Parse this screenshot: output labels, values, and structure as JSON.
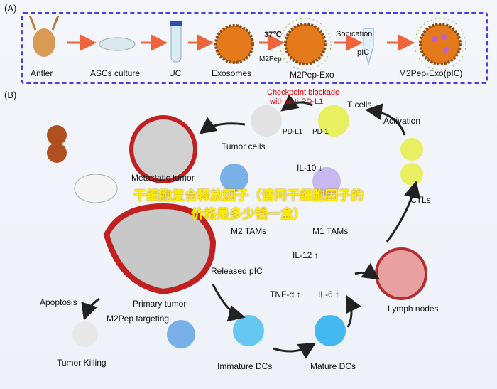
{
  "panel_a": {
    "label": "(A)",
    "steps": [
      "Antler",
      "ASCs culture",
      "UC",
      "Exosomes",
      "M2Pep-Exo",
      "M2Pep-Exo(pIC)"
    ],
    "temp": "37℃",
    "m2pep": "M2Pep",
    "sonication": "Sonication",
    "pic": "pIC"
  },
  "panel_b": {
    "label": "(B)",
    "checkpoint": "Checkpoint blockade",
    "checkpoint2": "with anti-PD-L1",
    "t_cells": "T cells",
    "pd_l1": "PD-L1",
    "pd_1": "PD-1",
    "tumor_cells": "Tumor cells",
    "metastatic": "Metastatic tumor",
    "activation": "Activation",
    "il10": "IL-10 ↓",
    "m2tams": "M2 TAMs",
    "m1tams": "M1 TAMs",
    "ctls": "CTLs",
    "il12": "IL-12 ↑",
    "released": "Released pIC",
    "primary": "Primary tumor",
    "apoptosis": "Apoptosis",
    "targeting": "M2Pep targeting",
    "tnf": "TNF-α ↑",
    "il6": "IL-6 ↑",
    "lymph": "Lymph nodes",
    "killing": "Tumor Killing",
    "immature": "Immature DCs",
    "mature": "Mature DCs"
  },
  "overlay_text": "干细胞复合释放因子（请问干细胞因子的价格是多少钱一盒）",
  "colors": {
    "border": "#4a3fe0",
    "arrow": "#f0643c",
    "overlay": "#ffee00",
    "red": "#e00000"
  }
}
